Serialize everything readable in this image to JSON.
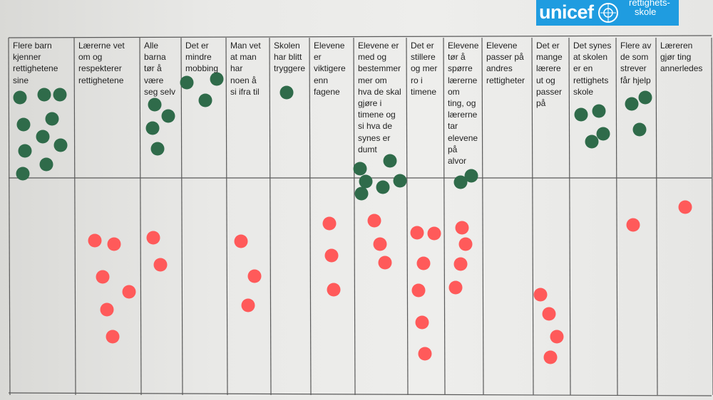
{
  "logo": {
    "word": "unicef",
    "sub_line1": "rettighets-",
    "sub_line2": "skole"
  },
  "colors": {
    "green": "#2f6b4a",
    "red": "#ff5a5a",
    "line": "#5a5a5a"
  },
  "columns": [
    {
      "label": "Flere barn\nkjenner\nrettighetene\nsine",
      "green": 10,
      "red": 0
    },
    {
      "label": "Lærerne vet\nom og\nrespekterer\nrettighetene",
      "green": 0,
      "red": 6
    },
    {
      "label": "Alle\nbarna\ntør å\nvære\nseg selv",
      "green": 4,
      "red": 2
    },
    {
      "label": "Det er\nmindre\nmobbing",
      "green": 3,
      "red": 0
    },
    {
      "label": "Man vet\nat man\nhar\nnoen å\nsi ifra til",
      "green": 0,
      "red": 3
    },
    {
      "label": "Skolen\nhar blitt\ntryggere",
      "green": 1,
      "red": 0
    },
    {
      "label": "Elevene\ner\nviktigere\nenn\nfagene",
      "green": 0,
      "red": 3
    },
    {
      "label": "Elevene er\nmed og\nbestemmer\nmer om\nhva de skal\ngjøre i\ntimene og\nsi hva de\nsynes er\ndumt",
      "green": 6,
      "red": 3
    },
    {
      "label": "Det er\nstillere\nog mer\nro i\ntimene",
      "green": 0,
      "red": 6
    },
    {
      "label": "Elevene\ntør å\nspørre\nlærerne\nom\nting, og\nlærerne\ntar\nelevene\npå\nalvor",
      "green": 2,
      "red": 4
    },
    {
      "label": "Elevene\npasser på\nandres\nrettigheter",
      "green": 0,
      "red": 0
    },
    {
      "label": "Det er\nmange\nlærere\nut og\npasser\npå",
      "green": 0,
      "red": 4
    },
    {
      "label": "Det synes\nat skolen\ner en\nrettighets\nskole",
      "green": 4,
      "red": 0
    },
    {
      "label": "Flere av\nde som\nstrever\nfår hjelp",
      "green": 3,
      "red": 1
    },
    {
      "label": "Læreren\ngjør ting\nannerledes",
      "green": 0,
      "red": 1
    }
  ]
}
